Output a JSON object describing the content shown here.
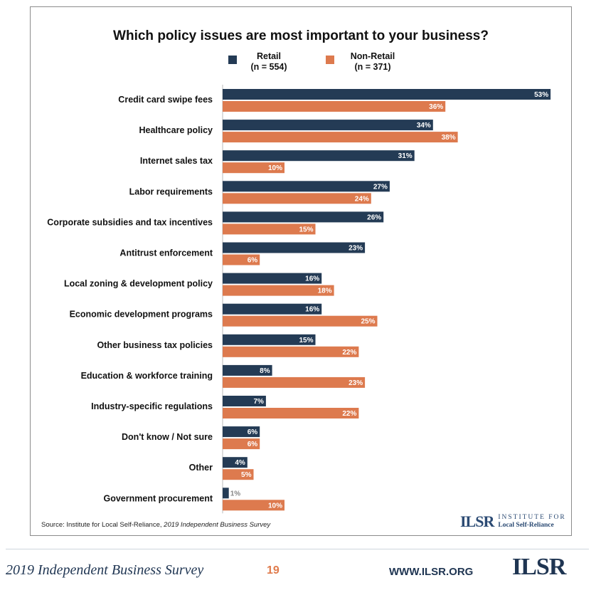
{
  "colors": {
    "retail": "#243b55",
    "non_retail": "#dd7a4e"
  },
  "legend": {
    "retail_name": "Retail",
    "retail_n": "(n = 554)",
    "non_retail_name": "Non-Retail",
    "non_retail_n": "(n = 371)"
  },
  "source": {
    "prefix": "Source: Institute for Local Self-Reliance, ",
    "italic": "2019 Independent Business Survey"
  },
  "logo_small": {
    "mark": "ILSR",
    "line1": "INSTITUTE FOR",
    "line2": "Local Self-Reliance"
  },
  "footer": {
    "survey": "2019 Independent Business Survey",
    "page": "19",
    "url": "WWW.ILSR.ORG",
    "logo": "ILSR"
  },
  "chart_data": {
    "type": "bar",
    "orientation": "horizontal",
    "title": "Which policy issues are most important to your business?",
    "categories": [
      "Credit card swipe fees",
      "Healthcare policy",
      "Internet sales tax",
      "Labor requirements",
      "Corporate subsidies and tax incentives",
      "Antitrust enforcement",
      "Local zoning & development policy",
      "Economic development programs",
      "Other business tax policies",
      "Education & workforce training",
      "Industry-specific regulations",
      "Don't know / Not sure",
      "Other",
      "Government procurement"
    ],
    "series": [
      {
        "name": "Retail",
        "values": [
          53,
          34,
          31,
          27,
          26,
          23,
          16,
          16,
          15,
          8,
          7,
          6,
          4,
          1
        ]
      },
      {
        "name": "Non-Retail",
        "values": [
          36,
          38,
          10,
          24,
          15,
          6,
          18,
          25,
          22,
          23,
          22,
          6,
          5,
          10
        ]
      }
    ],
    "value_suffix": "%",
    "grid": false,
    "legend_position": "top"
  }
}
